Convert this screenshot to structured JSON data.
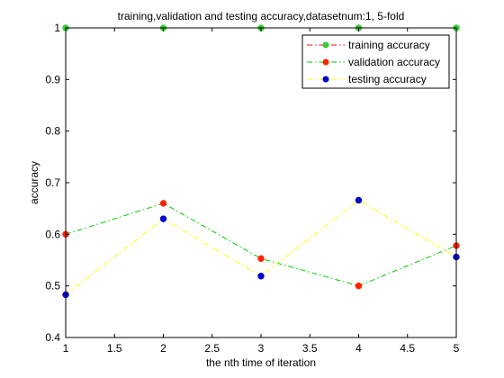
{
  "chart_data": {
    "type": "line",
    "title": "training,validation and testing accuracy,datasetnum:1, 5-fold",
    "xlabel": "the nth time of iteration",
    "ylabel": "accuracy",
    "xlim": [
      1,
      5
    ],
    "ylim": [
      0.4,
      1
    ],
    "xticks": [
      1,
      1.5,
      2,
      2.5,
      3,
      3.5,
      4,
      4.5,
      5
    ],
    "xtick_labels": [
      "1",
      "1.5",
      "2",
      "2.5",
      "3",
      "3.5",
      "4",
      "4.5",
      "5"
    ],
    "yticks": [
      0.4,
      0.5,
      0.6,
      0.7,
      0.8,
      0.9,
      1
    ],
    "ytick_labels": [
      "0.4",
      "0.5",
      "0.6",
      "0.7",
      "0.8",
      "0.9",
      "1"
    ],
    "grid": false,
    "legend_position": "top-right",
    "x": [
      1,
      2,
      3,
      4,
      5
    ],
    "series": [
      {
        "name": "training accuracy",
        "values": [
          1,
          1,
          1,
          1,
          1
        ],
        "line_color": "#ff0000",
        "marker_color": "#33cc33",
        "line_style": "dash-dot"
      },
      {
        "name": "validation accuracy",
        "values": [
          0.6,
          0.66,
          0.553,
          0.5,
          0.578
        ],
        "line_color": "#00cc00",
        "marker_color": "#ff2200",
        "line_style": "dash-dot"
      },
      {
        "name": "testing accuracy",
        "values": [
          0.483,
          0.63,
          0.519,
          0.666,
          0.556
        ],
        "line_color": "#ffff00",
        "marker_color": "#0000cc",
        "line_style": "dash-dot"
      }
    ]
  }
}
